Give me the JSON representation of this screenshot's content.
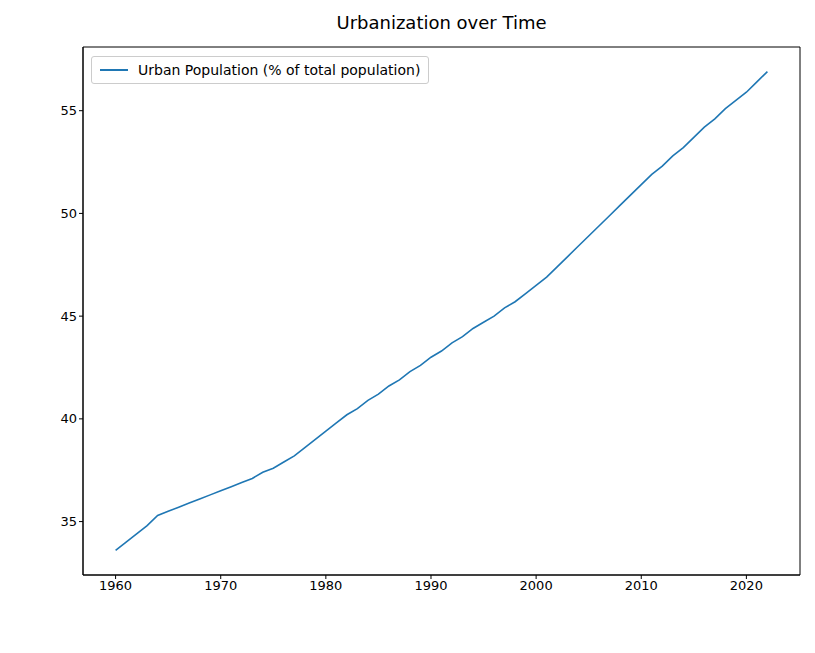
{
  "chart_data": {
    "type": "line",
    "title": "Urbanization over Time",
    "x": [
      1960,
      1961,
      1962,
      1963,
      1964,
      1965,
      1966,
      1967,
      1968,
      1969,
      1970,
      1971,
      1972,
      1973,
      1974,
      1975,
      1976,
      1977,
      1978,
      1979,
      1980,
      1981,
      1982,
      1983,
      1984,
      1985,
      1986,
      1987,
      1988,
      1989,
      1990,
      1991,
      1992,
      1993,
      1994,
      1995,
      1996,
      1997,
      1998,
      1999,
      2000,
      2001,
      2002,
      2003,
      2004,
      2005,
      2006,
      2007,
      2008,
      2009,
      2010,
      2011,
      2012,
      2013,
      2014,
      2015,
      2016,
      2017,
      2018,
      2019,
      2020,
      2021,
      2022
    ],
    "series": [
      {
        "name": "Urban Population (% of total population)",
        "color": "#1f77b4",
        "values": [
          33.6,
          34.0,
          34.4,
          34.8,
          35.3,
          35.5,
          35.7,
          35.9,
          36.1,
          36.3,
          36.5,
          36.7,
          36.9,
          37.1,
          37.4,
          37.6,
          37.9,
          38.2,
          38.6,
          39.0,
          39.4,
          39.8,
          40.2,
          40.5,
          40.9,
          41.2,
          41.6,
          41.9,
          42.3,
          42.6,
          43.0,
          43.3,
          43.7,
          44.0,
          44.4,
          44.7,
          45.0,
          45.4,
          45.7,
          46.1,
          46.5,
          46.9,
          47.4,
          47.9,
          48.4,
          48.9,
          49.4,
          49.9,
          50.4,
          50.9,
          51.4,
          51.9,
          52.3,
          52.8,
          53.2,
          53.7,
          54.2,
          54.6,
          55.1,
          55.5,
          55.9,
          56.4,
          56.9
        ]
      }
    ],
    "xlim": [
      1956.9,
      2025.1
    ],
    "ylim": [
      32.4,
      58.1
    ],
    "xticks": [
      1960,
      1970,
      1980,
      1990,
      2000,
      2010,
      2020
    ],
    "yticks": [
      35,
      40,
      45,
      50,
      55
    ],
    "legend": "upper left",
    "grid": false
  }
}
